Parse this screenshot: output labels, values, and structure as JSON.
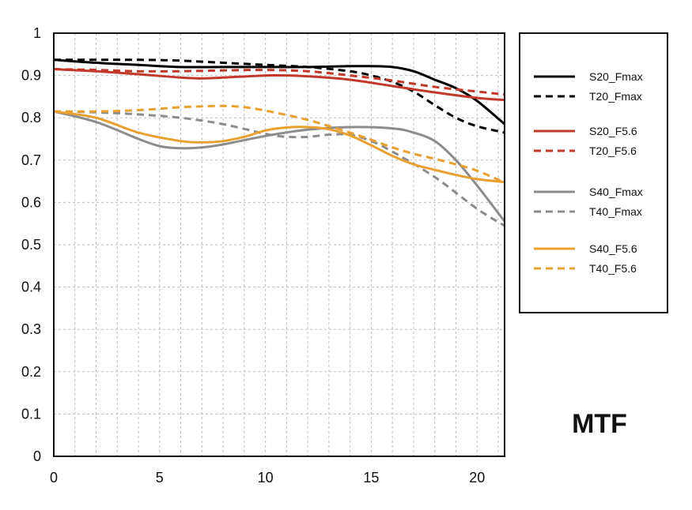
{
  "chart_data": {
    "type": "line",
    "title": "MTF",
    "xlabel": "",
    "ylabel": "",
    "xlim": [
      0,
      21.3
    ],
    "ylim": [
      0,
      1
    ],
    "x_ticks": [
      0,
      5,
      10,
      15,
      20
    ],
    "y_ticks": [
      0,
      0.1,
      0.2,
      0.3,
      0.4,
      0.5,
      0.6,
      0.7,
      0.8,
      0.9,
      1
    ],
    "x_tick_labels": [
      "0",
      "5",
      "10",
      "15",
      "20"
    ],
    "y_tick_labels": [
      "0",
      "0.1",
      "0.2",
      "0.3",
      "0.4",
      "0.5",
      "0.6",
      "0.7",
      "0.8",
      "0.9",
      "1"
    ],
    "grid": true,
    "legend_position": "right",
    "series": [
      {
        "name": "S20_Fmax",
        "color": "#000000",
        "dash": false,
        "x": [
          0,
          2,
          4,
          6,
          8,
          10,
          12,
          14,
          15,
          16,
          17,
          18,
          19,
          20,
          21.3
        ],
        "y": [
          0.937,
          0.93,
          0.925,
          0.92,
          0.92,
          0.92,
          0.92,
          0.922,
          0.922,
          0.92,
          0.91,
          0.89,
          0.87,
          0.84,
          0.785
        ]
      },
      {
        "name": "T20_Fmax",
        "color": "#000000",
        "dash": true,
        "x": [
          0,
          2,
          4,
          6,
          8,
          10,
          12,
          14,
          15,
          16,
          17,
          18,
          19,
          20,
          21.3
        ],
        "y": [
          0.937,
          0.937,
          0.937,
          0.935,
          0.93,
          0.925,
          0.92,
          0.91,
          0.9,
          0.885,
          0.862,
          0.83,
          0.8,
          0.78,
          0.765
        ]
      },
      {
        "name": "S20_F5.6",
        "color": "#c0392b",
        "dash": false,
        "x": [
          0,
          2,
          4,
          6,
          7,
          8,
          10,
          11,
          12,
          14,
          16,
          18,
          20,
          21.3
        ],
        "y": [
          0.915,
          0.91,
          0.903,
          0.895,
          0.893,
          0.895,
          0.9,
          0.9,
          0.898,
          0.89,
          0.875,
          0.86,
          0.847,
          0.842
        ]
      },
      {
        "name": "T20_F5.6",
        "color": "#c0392b",
        "dash": true,
        "x": [
          0,
          2,
          4,
          6,
          8,
          10,
          12,
          14,
          16,
          18,
          20,
          21.3
        ],
        "y": [
          0.915,
          0.913,
          0.91,
          0.91,
          0.912,
          0.913,
          0.91,
          0.9,
          0.888,
          0.873,
          0.862,
          0.855
        ]
      },
      {
        "name": "S40_Fmax",
        "color": "#8c8c8c",
        "dash": false,
        "x": [
          0,
          2,
          4,
          5,
          6,
          7,
          8,
          10,
          12,
          14,
          16,
          17,
          18,
          19,
          20,
          21.3
        ],
        "y": [
          0.815,
          0.79,
          0.75,
          0.733,
          0.728,
          0.73,
          0.737,
          0.757,
          0.772,
          0.778,
          0.775,
          0.765,
          0.745,
          0.7,
          0.64,
          0.555
        ]
      },
      {
        "name": "T40_Fmax",
        "color": "#8c8c8c",
        "dash": true,
        "x": [
          0,
          2,
          4,
          6,
          8,
          10,
          11,
          12,
          13,
          14,
          15,
          16,
          18,
          20,
          21.3
        ],
        "y": [
          0.815,
          0.813,
          0.808,
          0.8,
          0.785,
          0.762,
          0.755,
          0.755,
          0.76,
          0.76,
          0.745,
          0.72,
          0.66,
          0.585,
          0.545
        ]
      },
      {
        "name": "S40_F5.6",
        "color": "#e8a030",
        "dash": false,
        "x": [
          0,
          2,
          4,
          6,
          7,
          8,
          9,
          10,
          11,
          12,
          13,
          14,
          15,
          16,
          17,
          18,
          19,
          20,
          21.3
        ],
        "y": [
          0.815,
          0.8,
          0.765,
          0.745,
          0.742,
          0.745,
          0.755,
          0.77,
          0.777,
          0.778,
          0.773,
          0.758,
          0.735,
          0.71,
          0.69,
          0.677,
          0.665,
          0.655,
          0.648
        ]
      },
      {
        "name": "T40_F5.6",
        "color": "#e8a030",
        "dash": true,
        "x": [
          0,
          2,
          4,
          6,
          7,
          8,
          9,
          10,
          12,
          14,
          15,
          16,
          17,
          18,
          19,
          20,
          21.3
        ],
        "y": [
          0.815,
          0.815,
          0.818,
          0.825,
          0.827,
          0.828,
          0.825,
          0.817,
          0.795,
          0.765,
          0.748,
          0.73,
          0.715,
          0.703,
          0.69,
          0.675,
          0.647
        ]
      }
    ]
  }
}
